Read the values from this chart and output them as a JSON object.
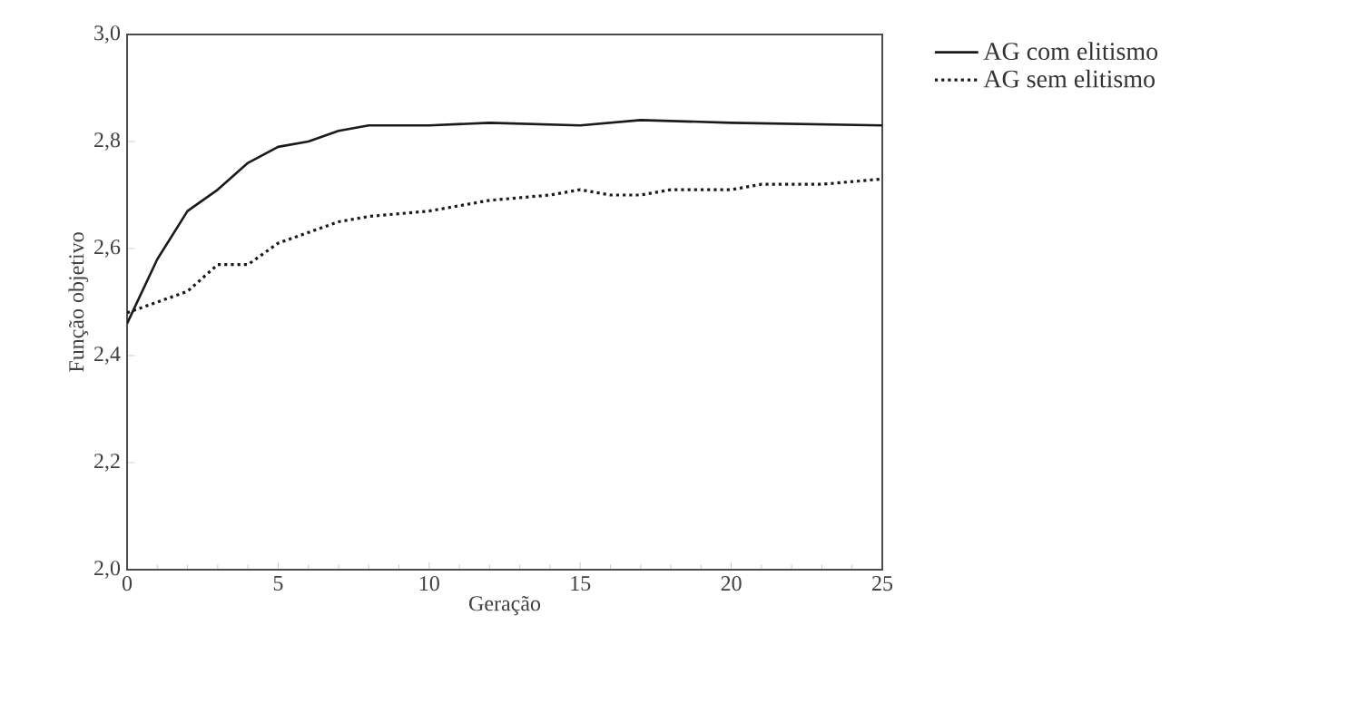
{
  "chart_data": {
    "type": "line",
    "xlabel": "Geração",
    "ylabel": "Função objetivo",
    "xlim": [
      0,
      25
    ],
    "xticks": [
      0,
      5,
      10,
      15,
      20,
      25
    ],
    "ylim": [
      2.0,
      3.0
    ],
    "yticks": [
      {
        "value": 2.0,
        "label": "2,0"
      },
      {
        "value": 2.2,
        "label": "2,2"
      },
      {
        "value": 2.4,
        "label": "2,4"
      },
      {
        "value": 2.6,
        "label": "2,6"
      },
      {
        "value": 2.8,
        "label": "2,8"
      },
      {
        "value": 3.0,
        "label": "3,0"
      }
    ],
    "legend": "top right",
    "grid": false,
    "marker": "none",
    "series": [
      {
        "name": "AG com elitismo",
        "color": "#1a1a1a",
        "line_style": "solid",
        "x": [
          0,
          1,
          2,
          3,
          4,
          5,
          6,
          7,
          8,
          9,
          10,
          12,
          15,
          17,
          20,
          25
        ],
        "values": [
          2.46,
          2.58,
          2.67,
          2.71,
          2.76,
          2.79,
          2.8,
          2.82,
          2.83,
          2.83,
          2.83,
          2.835,
          2.83,
          2.84,
          2.835,
          2.83
        ]
      },
      {
        "name": "AG sem elitismo",
        "color": "#1a1a1a",
        "line_style": "dotted",
        "x": [
          0,
          1,
          2,
          3,
          4,
          5,
          6,
          7,
          8,
          10,
          12,
          14,
          15,
          16,
          17,
          18,
          20,
          21,
          23,
          25
        ],
        "values": [
          2.48,
          2.5,
          2.52,
          2.57,
          2.57,
          2.61,
          2.63,
          2.65,
          2.66,
          2.67,
          2.69,
          2.7,
          2.71,
          2.7,
          2.7,
          2.71,
          2.71,
          2.72,
          2.72,
          2.73
        ]
      }
    ]
  }
}
